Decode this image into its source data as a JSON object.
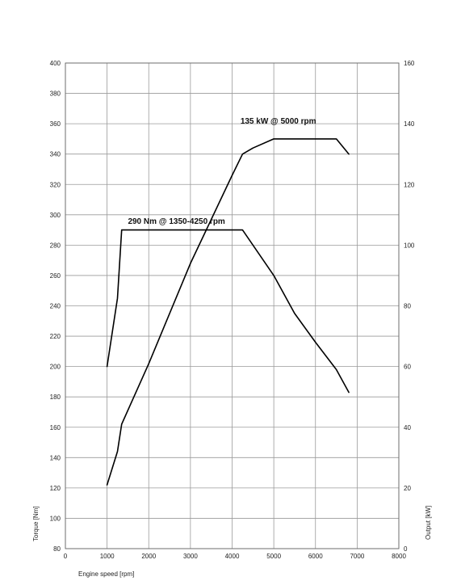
{
  "chart_data": {
    "type": "line",
    "xlabel": "Engine speed [rpm]",
    "ylabel_left": "Torque [Nm]",
    "ylabel_right": "Output [kW]",
    "xlim": [
      0,
      8000
    ],
    "x_ticks": [
      0,
      1000,
      2000,
      3000,
      4000,
      5000,
      6000,
      7000,
      8000
    ],
    "ylim_left": [
      80,
      400
    ],
    "y_ticks_left": [
      80,
      100,
      120,
      140,
      160,
      180,
      200,
      220,
      240,
      260,
      280,
      300,
      320,
      340,
      360,
      380,
      400
    ],
    "ylim_right": [
      0,
      160
    ],
    "y_ticks_right": [
      0,
      20,
      40,
      60,
      80,
      100,
      120,
      140,
      160
    ],
    "grid": true,
    "series": [
      {
        "axis": "left",
        "x": [
          1000,
          1250,
          1350,
          4250,
          5000,
          5500,
          6000,
          6500,
          6800
        ],
        "y": [
          200,
          245,
          290,
          290,
          260,
          235,
          216,
          198,
          183
        ]
      },
      {
        "axis": "right",
        "x": [
          1000,
          1250,
          1350,
          2000,
          3000,
          4000,
          4250,
          4500,
          5000,
          6000,
          6500,
          6800
        ],
        "y": [
          21,
          32,
          41,
          61,
          94,
          123,
          130,
          132,
          135,
          135,
          135,
          130
        ]
      }
    ],
    "annotations": [
      {
        "text": "290 Nm @ 1350-4250 rpm",
        "x": 1500,
        "y": 294,
        "axis": "left"
      },
      {
        "text": "135 kW @ 5000 rpm",
        "x": 4200,
        "y": 140,
        "axis": "right"
      }
    ]
  }
}
